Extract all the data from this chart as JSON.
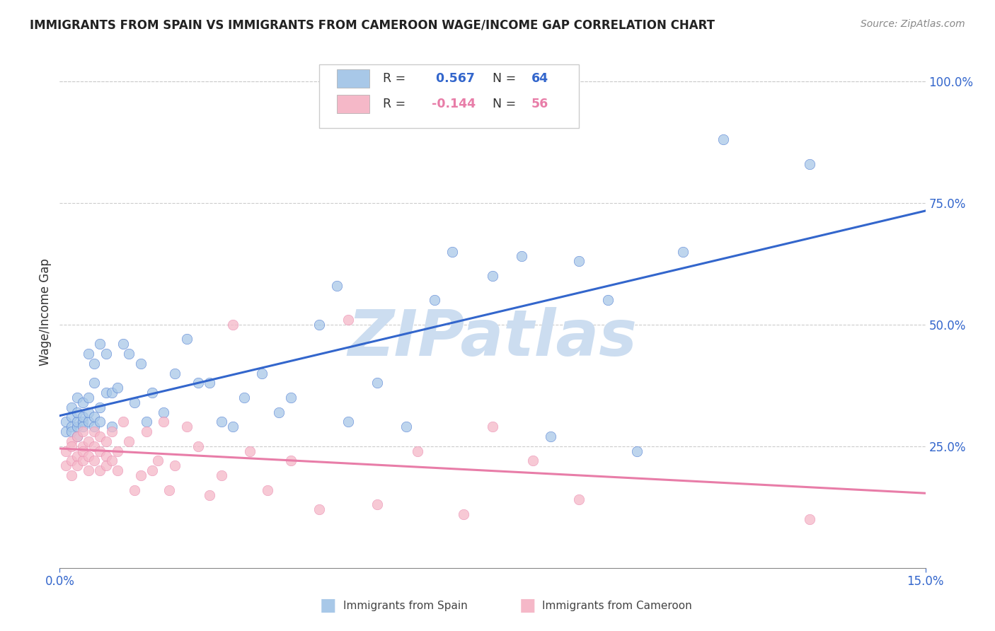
{
  "title": "IMMIGRANTS FROM SPAIN VS IMMIGRANTS FROM CAMEROON WAGE/INCOME GAP CORRELATION CHART",
  "source": "Source: ZipAtlas.com",
  "ylabel": "Wage/Income Gap",
  "xlim": [
    0.0,
    0.15
  ],
  "ylim": [
    0.0,
    1.05
  ],
  "xtick_positions": [
    0.0,
    0.15
  ],
  "xtick_labels": [
    "0.0%",
    "15.0%"
  ],
  "yticks_right": [
    0.25,
    0.5,
    0.75,
    1.0
  ],
  "ytick_labels_right": [
    "25.0%",
    "50.0%",
    "75.0%",
    "100.0%"
  ],
  "spain_color": "#a8c8e8",
  "cameroon_color": "#f5b8c8",
  "spain_line_color": "#3366cc",
  "cameroon_line_color": "#e87da8",
  "spain_R": 0.567,
  "spain_N": 64,
  "cameroon_R": -0.144,
  "cameroon_N": 56,
  "watermark": "ZIPatlas",
  "watermark_color": "#ccddf0",
  "background_color": "#ffffff",
  "legend_label_spain": "Immigrants from Spain",
  "legend_label_cameroon": "Immigrants from Cameroon",
  "spain_x": [
    0.001,
    0.001,
    0.002,
    0.002,
    0.002,
    0.002,
    0.003,
    0.003,
    0.003,
    0.003,
    0.003,
    0.004,
    0.004,
    0.004,
    0.004,
    0.005,
    0.005,
    0.005,
    0.005,
    0.006,
    0.006,
    0.006,
    0.006,
    0.007,
    0.007,
    0.007,
    0.008,
    0.008,
    0.009,
    0.009,
    0.01,
    0.011,
    0.012,
    0.013,
    0.014,
    0.015,
    0.016,
    0.018,
    0.02,
    0.022,
    0.024,
    0.026,
    0.028,
    0.03,
    0.032,
    0.035,
    0.038,
    0.04,
    0.045,
    0.048,
    0.05,
    0.055,
    0.06,
    0.065,
    0.068,
    0.075,
    0.08,
    0.085,
    0.09,
    0.095,
    0.1,
    0.108,
    0.115,
    0.13
  ],
  "spain_y": [
    0.28,
    0.3,
    0.29,
    0.31,
    0.28,
    0.33,
    0.29,
    0.3,
    0.32,
    0.27,
    0.35,
    0.3,
    0.34,
    0.29,
    0.31,
    0.3,
    0.35,
    0.32,
    0.44,
    0.29,
    0.38,
    0.42,
    0.31,
    0.33,
    0.46,
    0.3,
    0.36,
    0.44,
    0.29,
    0.36,
    0.37,
    0.46,
    0.44,
    0.34,
    0.42,
    0.3,
    0.36,
    0.32,
    0.4,
    0.47,
    0.38,
    0.38,
    0.3,
    0.29,
    0.35,
    0.4,
    0.32,
    0.35,
    0.5,
    0.58,
    0.3,
    0.38,
    0.29,
    0.55,
    0.65,
    0.6,
    0.64,
    0.27,
    0.63,
    0.55,
    0.24,
    0.65,
    0.88,
    0.83
  ],
  "cameroon_x": [
    0.001,
    0.001,
    0.002,
    0.002,
    0.002,
    0.002,
    0.003,
    0.003,
    0.003,
    0.004,
    0.004,
    0.004,
    0.004,
    0.005,
    0.005,
    0.005,
    0.006,
    0.006,
    0.006,
    0.007,
    0.007,
    0.007,
    0.008,
    0.008,
    0.008,
    0.009,
    0.009,
    0.01,
    0.01,
    0.011,
    0.012,
    0.013,
    0.014,
    0.015,
    0.016,
    0.017,
    0.018,
    0.019,
    0.02,
    0.022,
    0.024,
    0.026,
    0.028,
    0.03,
    0.033,
    0.036,
    0.04,
    0.045,
    0.05,
    0.055,
    0.062,
    0.07,
    0.075,
    0.082,
    0.09,
    0.13
  ],
  "cameroon_y": [
    0.24,
    0.21,
    0.22,
    0.26,
    0.19,
    0.25,
    0.23,
    0.27,
    0.21,
    0.25,
    0.22,
    0.28,
    0.24,
    0.23,
    0.26,
    0.2,
    0.25,
    0.22,
    0.28,
    0.24,
    0.2,
    0.27,
    0.23,
    0.21,
    0.26,
    0.22,
    0.28,
    0.24,
    0.2,
    0.3,
    0.26,
    0.16,
    0.19,
    0.28,
    0.2,
    0.22,
    0.3,
    0.16,
    0.21,
    0.29,
    0.25,
    0.15,
    0.19,
    0.5,
    0.24,
    0.16,
    0.22,
    0.12,
    0.51,
    0.13,
    0.24,
    0.11,
    0.29,
    0.22,
    0.14,
    0.1
  ]
}
